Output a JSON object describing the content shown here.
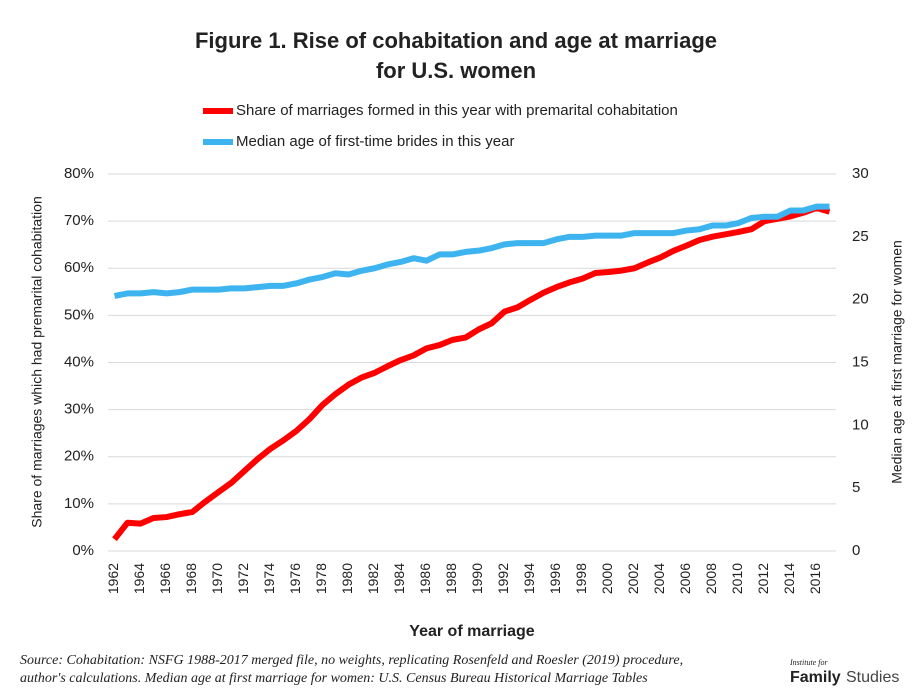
{
  "chart_data": {
    "type": "line",
    "title": [
      "Figure 1. Rise of cohabitation and age at marriage",
      "for U.S. women"
    ],
    "x_label": "Year of marriage",
    "y_label": "Share of marriages which had premarital cohabitation",
    "y2_label": "Median age at first marriage for women",
    "source": [
      "Source: Cohabitation: NSFG 1988-2017 merged file, no weights, replicating Rosenfeld and Roesler (2019) procedure,",
      "author's calculations. Median age at first marriage for women: U.S. Census Bureau Historical Marriage Tables"
    ],
    "logo": [
      "Institute for",
      "Family",
      "Studies"
    ],
    "x": [
      1962,
      1963,
      1964,
      1965,
      1966,
      1967,
      1968,
      1969,
      1970,
      1971,
      1972,
      1973,
      1974,
      1975,
      1976,
      1977,
      1978,
      1979,
      1980,
      1981,
      1982,
      1983,
      1984,
      1985,
      1986,
      1987,
      1988,
      1989,
      1990,
      1991,
      1992,
      1993,
      1994,
      1995,
      1996,
      1997,
      1998,
      1999,
      2000,
      2001,
      2002,
      2003,
      2004,
      2005,
      2006,
      2007,
      2008,
      2009,
      2010,
      2011,
      2012,
      2013,
      2014,
      2015,
      2016,
      2017
    ],
    "xlim": [
      1961.5,
      2017.5
    ],
    "xticks": [
      1962,
      1964,
      1966,
      1968,
      1970,
      1972,
      1974,
      1976,
      1978,
      1980,
      1982,
      1984,
      1986,
      1988,
      1990,
      1992,
      1994,
      1996,
      1998,
      2000,
      2002,
      2004,
      2006,
      2008,
      2010,
      2012,
      2014,
      2016
    ],
    "ylim": [
      0,
      80
    ],
    "yticks": [
      {
        "value": 0,
        "label": "0%"
      },
      {
        "value": 10,
        "label": "10%"
      },
      {
        "value": 20,
        "label": "20%"
      },
      {
        "value": 30,
        "label": "30%"
      },
      {
        "value": 40,
        "label": "40%"
      },
      {
        "value": 50,
        "label": "50%"
      },
      {
        "value": 60,
        "label": "60%"
      },
      {
        "value": 70,
        "label": "70%"
      },
      {
        "value": 80,
        "label": "80%"
      }
    ],
    "y2lim": [
      0,
      30
    ],
    "y2ticks": [
      0,
      5,
      10,
      15,
      20,
      25,
      30
    ],
    "series": [
      {
        "name": "Share of marriages formed in this year with premarital cohabitation",
        "color": "#ff0000",
        "values": [
          2.5,
          6,
          5.8,
          7,
          7.2,
          7.8,
          8.3,
          10.5,
          12.5,
          14.5,
          17,
          19.5,
          21.7,
          23.5,
          25.5,
          28,
          31,
          33.3,
          35.3,
          36.8,
          37.8,
          39.2,
          40.5,
          41.5,
          43,
          43.7,
          44.8,
          45.3,
          47,
          48.3,
          50.8,
          51.7,
          53.3,
          54.8,
          56,
          57,
          57.8,
          59,
          59.2,
          59.5,
          60,
          61.2,
          62.3,
          63.7,
          64.8,
          66,
          66.7,
          67.2,
          67.7,
          68.3,
          70,
          70.5,
          71,
          71.8,
          72.8,
          72
        ]
      },
      {
        "name": "Median age of first-time brides in this year",
        "color": "#3db4f0",
        "axis": "y2",
        "values": [
          20.3,
          20.5,
          20.5,
          20.6,
          20.5,
          20.6,
          20.8,
          20.8,
          20.8,
          20.9,
          20.9,
          21,
          21.1,
          21.1,
          21.3,
          21.6,
          21.8,
          22.1,
          22,
          22.3,
          22.5,
          22.8,
          23,
          23.3,
          23.1,
          23.6,
          23.6,
          23.8,
          23.9,
          24.1,
          24.4,
          24.5,
          24.5,
          24.5,
          24.8,
          25,
          25,
          25.1,
          25.1,
          25.1,
          25.3,
          25.3,
          25.3,
          25.3,
          25.5,
          25.6,
          25.9,
          25.9,
          26.1,
          26.5,
          26.6,
          26.6,
          27.1,
          27.1,
          27.4,
          27.4
        ]
      }
    ],
    "grid": true,
    "legend": "top"
  }
}
